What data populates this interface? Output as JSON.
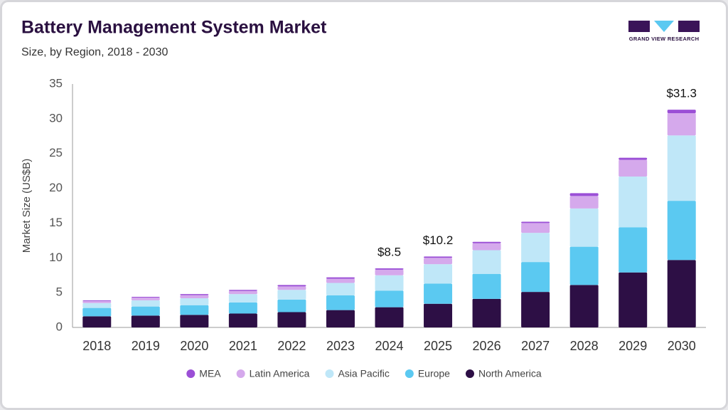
{
  "logo": "GRAND VIEW RESEARCH",
  "chart_data": {
    "type": "stacked_bar",
    "title": "Battery Management System Market",
    "subtitle": "Size, by Region, 2018 - 2030",
    "y_label": "Market Size (US$B)",
    "categories": [
      "2018",
      "2019",
      "2020",
      "2021",
      "2022",
      "2023",
      "2024",
      "2025",
      "2026",
      "2027",
      "2028",
      "2029",
      "2030"
    ],
    "series": [
      {
        "name": "MEA",
        "color": "#9b4fd6",
        "values": [
          0.1,
          0.1,
          0.15,
          0.15,
          0.2,
          0.2,
          0.2,
          0.2,
          0.2,
          0.2,
          0.4,
          0.3,
          0.5
        ]
      },
      {
        "name": "Latin America",
        "color": "#d5a9ec",
        "values": [
          0.3,
          0.4,
          0.45,
          0.45,
          0.5,
          0.6,
          0.8,
          0.9,
          1.0,
          1.4,
          1.8,
          2.4,
          3.2
        ]
      },
      {
        "name": "Asia Pacific",
        "color": "#bfe7f8",
        "values": [
          0.7,
          0.9,
          1.0,
          1.2,
          1.4,
          1.8,
          2.2,
          2.8,
          3.4,
          4.2,
          5.5,
          7.3,
          9.4
        ]
      },
      {
        "name": "Europe",
        "color": "#5bc9f1",
        "values": [
          1.2,
          1.3,
          1.4,
          1.6,
          1.8,
          2.1,
          2.4,
          2.9,
          3.6,
          4.3,
          5.5,
          6.5,
          8.5
        ]
      },
      {
        "name": "North America",
        "color": "#2d0f45",
        "values": [
          1.6,
          1.7,
          1.8,
          2.0,
          2.2,
          2.5,
          2.9,
          3.4,
          4.1,
          5.1,
          6.1,
          7.9,
          9.7
        ]
      }
    ],
    "totals": [
      null,
      null,
      null,
      null,
      null,
      null,
      8.5,
      10.2,
      null,
      null,
      null,
      null,
      31.3
    ],
    "total_labels": [
      null,
      null,
      null,
      null,
      null,
      null,
      "$8.5",
      "$10.2",
      null,
      null,
      null,
      null,
      "$31.3"
    ],
    "ylim": [
      0,
      35
    ],
    "yticks": [
      0,
      5,
      10,
      15,
      20,
      25,
      30,
      35
    ],
    "grid": false
  }
}
